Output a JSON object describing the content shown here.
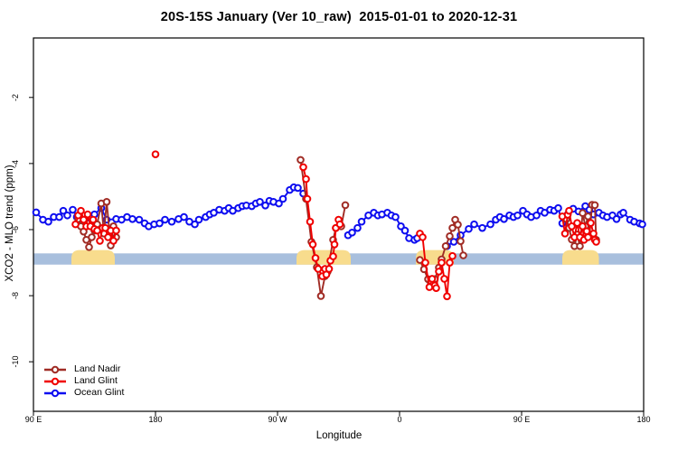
{
  "chart_data": {
    "type": "line",
    "title": "20S-15S January (Ver 10_raw)  2015-01-01 to 2020-12-31",
    "xlabel": "Longitude",
    "ylabel": "XCO2 - MLO trend (ppm)",
    "x_domain": [
      90,
      540
    ],
    "ylim": [
      -11.5,
      -0.2
    ],
    "grid": false,
    "legend_position": "bottom-left",
    "x_ticks": [
      {
        "d": 90,
        "label": "90 E"
      },
      {
        "d": 180,
        "label": "180"
      },
      {
        "d": 270,
        "label": "90 W"
      },
      {
        "d": 360,
        "label": "0"
      },
      {
        "d": 450,
        "label": "90 E"
      },
      {
        "d": 540,
        "label": "180"
      }
    ],
    "y_ticks": [
      {
        "v": -2,
        "label": "-2"
      },
      {
        "v": -4,
        "label": "-4"
      },
      {
        "v": -6,
        "label": "-6"
      },
      {
        "v": -8,
        "label": "-8"
      },
      {
        "v": -10,
        "label": "-10"
      }
    ],
    "ocean_band": {
      "y_top": -6.72,
      "y_bottom": -7.06,
      "color": "#a8bfdd"
    },
    "land_regions": {
      "color": "#f8dc8d",
      "y_top": -6.62,
      "ranges": [
        [
          118,
          150
        ],
        [
          284,
          324
        ],
        [
          372,
          400
        ],
        [
          480,
          507
        ]
      ]
    },
    "series": [
      {
        "name": "Land Nadir",
        "color": "#a02c25",
        "marker": "open-circle",
        "segments": [
          [
            [
              123,
              -5.68
            ],
            [
              125,
              -5.9
            ],
            [
              127,
              -6.06
            ],
            [
              129,
              -6.31
            ],
            [
              131,
              -6.53
            ],
            [
              133,
              -6.23
            ],
            [
              135,
              -6.03
            ],
            [
              137,
              -5.84
            ],
            [
              140,
              -5.21
            ],
            [
              142,
              -6.12
            ],
            [
              144,
              -5.16
            ],
            [
              147,
              -6.48
            ],
            [
              149,
              -5.9
            ],
            [
              151,
              -6.23
            ]
          ],
          [
            [
              287,
              -3.89
            ],
            [
              291,
              -5.07
            ],
            [
              295,
              -6.37
            ],
            [
              299,
              -7.14
            ],
            [
              302,
              -8.01
            ],
            [
              305,
              -7.41
            ],
            [
              307,
              -7.27
            ],
            [
              311,
              -6.31
            ],
            [
              313,
              -5.95
            ],
            [
              317,
              -5.9
            ],
            [
              320,
              -5.26
            ]
          ],
          [
            [
              375,
              -6.92
            ],
            [
              378,
              -7.2
            ],
            [
              381,
              -7.5
            ],
            [
              383,
              -7.6
            ],
            [
              386,
              -7.5
            ],
            [
              389,
              -7.15
            ],
            [
              391,
              -6.9
            ],
            [
              394,
              -6.5
            ],
            [
              397,
              -6.2
            ],
            [
              399,
              -5.95
            ],
            [
              401,
              -5.7
            ],
            [
              403,
              -5.85
            ],
            [
              405,
              -6.35
            ],
            [
              407,
              -6.78
            ]
          ],
          [
            [
              483,
              -5.68
            ],
            [
              485,
              -5.95
            ],
            [
              487,
              -6.3
            ],
            [
              489,
              -6.5
            ],
            [
              491,
              -6.15
            ],
            [
              493,
              -6.5
            ],
            [
              495,
              -5.5
            ],
            [
              497,
              -5.9
            ],
            [
              499,
              -5.6
            ],
            [
              500,
              -6.2
            ],
            [
              502,
              -5.25
            ],
            [
              504,
              -5.26
            ],
            [
              505,
              -6.31
            ]
          ]
        ]
      },
      {
        "name": "Land Glint",
        "color": "#f00000",
        "marker": "open-circle",
        "segments": [
          [
            [
              121,
              -5.84
            ],
            [
              123,
              -5.57
            ],
            [
              125,
              -5.43
            ],
            [
              127,
              -5.7
            ],
            [
              129,
              -5.9
            ],
            [
              130,
              -5.54
            ],
            [
              132,
              -5.9
            ],
            [
              134,
              -5.7
            ],
            [
              135,
              -5.98
            ],
            [
              137,
              -6.03
            ],
            [
              139,
              -6.34
            ],
            [
              141,
              -5.95
            ],
            [
              143,
              -5.95
            ],
            [
              145,
              -6.23
            ],
            [
              147,
              -6.03
            ],
            [
              149,
              -6.34
            ],
            [
              151,
              -6.03
            ]
          ],
          [
            [
              180,
              -3.72
            ]
          ],
          [
            [
              289,
              -4.11
            ],
            [
              291,
              -4.47
            ],
            [
              292,
              -5.07
            ],
            [
              294,
              -5.76
            ],
            [
              296,
              -6.45
            ],
            [
              298,
              -6.86
            ],
            [
              300,
              -7.19
            ],
            [
              303,
              -7.41
            ],
            [
              305,
              -7.19
            ],
            [
              306,
              -7.36
            ],
            [
              308,
              -7.19
            ],
            [
              309,
              -6.94
            ],
            [
              311,
              -6.81
            ],
            [
              312,
              -6.45
            ],
            [
              313,
              -5.95
            ],
            [
              315,
              -5.7
            ],
            [
              316,
              -5.84
            ]
          ],
          [
            [
              375,
              -6.12
            ],
            [
              377,
              -6.23
            ],
            [
              379,
              -7.0
            ],
            [
              382,
              -7.74
            ],
            [
              384,
              -7.49
            ],
            [
              386,
              -7.69
            ],
            [
              387,
              -7.77
            ],
            [
              389,
              -7.27
            ],
            [
              391,
              -7.0
            ],
            [
              393,
              -7.49
            ],
            [
              395,
              -8.02
            ],
            [
              397,
              -7.0
            ],
            [
              399,
              -6.8
            ]
          ],
          [
            [
              480,
              -5.6
            ],
            [
              482,
              -6.12
            ],
            [
              484,
              -5.55
            ],
            [
              485,
              -5.43
            ],
            [
              487,
              -5.9
            ],
            [
              489,
              -6.23
            ],
            [
              491,
              -5.8
            ],
            [
              493,
              -6.23
            ],
            [
              495,
              -5.9
            ],
            [
              496,
              -6.31
            ],
            [
              498,
              -6.05
            ],
            [
              499,
              -6.23
            ],
            [
              501,
              -5.8
            ],
            [
              503,
              -6.12
            ],
            [
              504,
              -6.31
            ],
            [
              505,
              -6.37
            ]
          ]
        ]
      },
      {
        "name": "Ocean Glint",
        "color": "#0d0df0",
        "marker": "open-circle",
        "segments": [
          [
            [
              92,
              -5.48
            ],
            [
              97,
              -5.7
            ],
            [
              101,
              -5.76
            ],
            [
              105,
              -5.62
            ],
            [
              109,
              -5.62
            ],
            [
              112,
              -5.43
            ],
            [
              115,
              -5.57
            ],
            [
              119,
              -5.4
            ],
            [
              122,
              -5.62
            ],
            [
              125,
              -5.68
            ],
            [
              130,
              -5.81
            ],
            [
              135,
              -5.54
            ],
            [
              140,
              -5.35
            ],
            [
              144,
              -5.7
            ],
            [
              151,
              -5.68
            ],
            [
              155,
              -5.7
            ],
            [
              159,
              -5.62
            ],
            [
              163,
              -5.68
            ],
            [
              168,
              -5.7
            ],
            [
              172,
              -5.81
            ],
            [
              175,
              -5.9
            ],
            [
              179,
              -5.84
            ],
            [
              183,
              -5.81
            ],
            [
              187,
              -5.7
            ],
            [
              192,
              -5.76
            ],
            [
              197,
              -5.68
            ],
            [
              201,
              -5.62
            ],
            [
              205,
              -5.76
            ],
            [
              209,
              -5.84
            ],
            [
              212,
              -5.7
            ],
            [
              217,
              -5.62
            ],
            [
              220,
              -5.54
            ],
            [
              223,
              -5.49
            ],
            [
              227,
              -5.4
            ],
            [
              231,
              -5.43
            ],
            [
              234,
              -5.35
            ],
            [
              237,
              -5.43
            ],
            [
              241,
              -5.35
            ],
            [
              244,
              -5.29
            ],
            [
              247,
              -5.27
            ],
            [
              251,
              -5.29
            ],
            [
              254,
              -5.21
            ],
            [
              257,
              -5.16
            ],
            [
              261,
              -5.27
            ],
            [
              264,
              -5.13
            ],
            [
              267,
              -5.16
            ],
            [
              271,
              -5.21
            ],
            [
              274,
              -5.07
            ],
            [
              279,
              -4.8
            ],
            [
              282,
              -4.72
            ],
            [
              285,
              -4.74
            ],
            [
              289,
              -4.91
            ]
          ],
          [
            [
              322,
              -6.17
            ],
            [
              325,
              -6.09
            ],
            [
              329,
              -5.95
            ],
            [
              332,
              -5.76
            ],
            [
              337,
              -5.57
            ],
            [
              341,
              -5.49
            ],
            [
              344,
              -5.57
            ],
            [
              347,
              -5.54
            ],
            [
              351,
              -5.49
            ],
            [
              354,
              -5.57
            ],
            [
              357,
              -5.62
            ],
            [
              361,
              -5.9
            ],
            [
              364,
              -6.03
            ],
            [
              367,
              -6.26
            ],
            [
              371,
              -6.31
            ],
            [
              373,
              -6.26
            ]
          ],
          [
            [
              395,
              -6.5
            ],
            [
              400,
              -6.37
            ],
            [
              405,
              -6.17
            ],
            [
              411,
              -5.98
            ],
            [
              415,
              -5.84
            ],
            [
              421,
              -5.95
            ],
            [
              427,
              -5.84
            ],
            [
              431,
              -5.7
            ],
            [
              434,
              -5.62
            ],
            [
              437,
              -5.68
            ],
            [
              441,
              -5.57
            ],
            [
              444,
              -5.62
            ],
            [
              447,
              -5.57
            ],
            [
              451,
              -5.43
            ],
            [
              454,
              -5.54
            ],
            [
              457,
              -5.62
            ],
            [
              461,
              -5.57
            ],
            [
              464,
              -5.43
            ],
            [
              467,
              -5.49
            ],
            [
              471,
              -5.4
            ],
            [
              474,
              -5.43
            ],
            [
              477,
              -5.35
            ],
            [
              480,
              -5.81
            ],
            [
              484,
              -5.54
            ],
            [
              488,
              -5.37
            ],
            [
              492,
              -5.45
            ],
            [
              497,
              -5.29
            ],
            [
              500,
              -5.4
            ],
            [
              503,
              -5.54
            ],
            [
              507,
              -5.49
            ],
            [
              510,
              -5.57
            ],
            [
              513,
              -5.62
            ],
            [
              517,
              -5.57
            ],
            [
              520,
              -5.68
            ],
            [
              523,
              -5.54
            ],
            [
              525,
              -5.49
            ],
            [
              530,
              -5.7
            ],
            [
              533,
              -5.76
            ],
            [
              537,
              -5.81
            ],
            [
              539,
              -5.84
            ]
          ]
        ]
      }
    ]
  }
}
